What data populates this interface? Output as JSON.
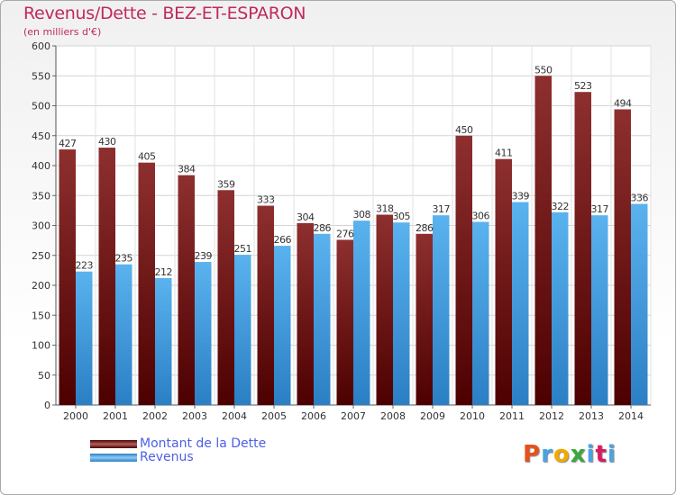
{
  "header": {
    "title": "Revenus/Dette - BEZ-ET-ESPARON",
    "subtitle": "(en milliers d'€)"
  },
  "legend": [
    {
      "label": "Montant de la Dette",
      "color": "#7a1010"
    },
    {
      "label": "Revenus",
      "color": "#4aa3e2"
    }
  ],
  "logo": {
    "text": "Proxiti",
    "colors": [
      "#e8501c",
      "#4aa3e2",
      "#f2a900",
      "#3aa83a",
      "#4aa3e2",
      "#d81b60",
      "#4aa3e2"
    ]
  },
  "chart_data": {
    "type": "bar",
    "title": "Revenus/Dette - BEZ-ET-ESPARON",
    "ylabel": "(en milliers d'€)",
    "categories": [
      "2000",
      "2001",
      "2002",
      "2003",
      "2004",
      "2005",
      "2006",
      "2007",
      "2008",
      "2009",
      "2010",
      "2011",
      "2012",
      "2013",
      "2014"
    ],
    "series": [
      {
        "name": "Montant de la Dette",
        "color": "#7a1010",
        "values": [
          427,
          430,
          405,
          384,
          359,
          333,
          304,
          276,
          318,
          286,
          450,
          411,
          550,
          523,
          494
        ]
      },
      {
        "name": "Revenus",
        "color": "#4aa3e2",
        "values": [
          223,
          235,
          212,
          239,
          251,
          266,
          286,
          308,
          305,
          317,
          306,
          339,
          322,
          317,
          336
        ]
      }
    ],
    "ylim": [
      0,
      600
    ],
    "yticks": [
      0,
      50,
      100,
      150,
      200,
      250,
      300,
      350,
      400,
      450,
      500,
      550,
      600
    ],
    "grid": true,
    "legend_position": "bottom-left"
  }
}
